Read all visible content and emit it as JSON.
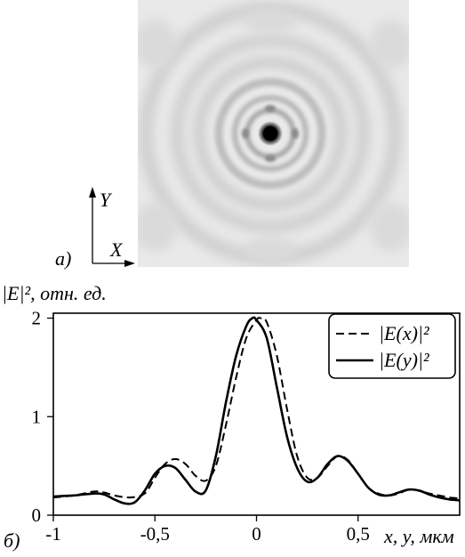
{
  "panel_a": {
    "label": "а)",
    "axis_y": "Y",
    "axis_x": "X"
  },
  "panel_b": {
    "label": "б)"
  },
  "chart_data": {
    "type": "line",
    "title": "",
    "ylabel": "|E|², отн. ед.",
    "xlabel": "x, y, мкм",
    "xlim": [
      -1,
      1
    ],
    "ylim": [
      0,
      2.05
    ],
    "x_ticks": [
      -1,
      -0.5,
      0,
      0.5
    ],
    "x_tick_labels": [
      "-1",
      "-0,5",
      "0",
      "0,5"
    ],
    "y_ticks": [
      0,
      1,
      2
    ],
    "y_tick_labels": [
      "0",
      "1",
      "2"
    ],
    "grid": false,
    "legend_position": "top-right",
    "series": [
      {
        "name": "|E(x)|²",
        "style": "dashed",
        "color": "#000000",
        "x": [
          -1.0,
          -0.9,
          -0.8,
          -0.75,
          -0.7,
          -0.62,
          -0.55,
          -0.5,
          -0.45,
          -0.4,
          -0.35,
          -0.3,
          -0.25,
          -0.2,
          -0.15,
          -0.1,
          -0.05,
          0.0,
          0.02,
          0.05,
          0.1,
          0.15,
          0.2,
          0.25,
          0.3,
          0.35,
          0.4,
          0.45,
          0.5,
          0.55,
          0.6,
          0.65,
          0.7,
          0.75,
          0.8,
          0.85,
          0.9,
          0.95,
          1.0
        ],
        "y": [
          0.18,
          0.2,
          0.24,
          0.23,
          0.2,
          0.18,
          0.22,
          0.38,
          0.52,
          0.57,
          0.52,
          0.4,
          0.35,
          0.5,
          0.92,
          1.4,
          1.8,
          1.98,
          2.0,
          1.96,
          1.62,
          1.08,
          0.6,
          0.38,
          0.38,
          0.5,
          0.6,
          0.56,
          0.42,
          0.28,
          0.22,
          0.2,
          0.22,
          0.26,
          0.25,
          0.22,
          0.2,
          0.18,
          0.17
        ]
      },
      {
        "name": "|E(y)|²",
        "style": "solid",
        "color": "#000000",
        "x": [
          -1.0,
          -0.9,
          -0.8,
          -0.75,
          -0.7,
          -0.65,
          -0.6,
          -0.55,
          -0.5,
          -0.45,
          -0.4,
          -0.35,
          -0.3,
          -0.25,
          -0.2,
          -0.15,
          -0.1,
          -0.05,
          -0.02,
          0.0,
          0.05,
          0.1,
          0.15,
          0.2,
          0.25,
          0.3,
          0.35,
          0.4,
          0.45,
          0.5,
          0.55,
          0.6,
          0.65,
          0.7,
          0.75,
          0.8,
          0.85,
          0.9,
          0.95,
          1.0
        ],
        "y": [
          0.19,
          0.2,
          0.22,
          0.21,
          0.16,
          0.12,
          0.13,
          0.25,
          0.42,
          0.5,
          0.48,
          0.36,
          0.24,
          0.25,
          0.6,
          1.15,
          1.62,
          1.92,
          2.0,
          1.98,
          1.8,
          1.3,
          0.8,
          0.48,
          0.34,
          0.38,
          0.52,
          0.6,
          0.55,
          0.42,
          0.28,
          0.21,
          0.2,
          0.23,
          0.26,
          0.25,
          0.21,
          0.18,
          0.16,
          0.15
        ]
      }
    ]
  }
}
